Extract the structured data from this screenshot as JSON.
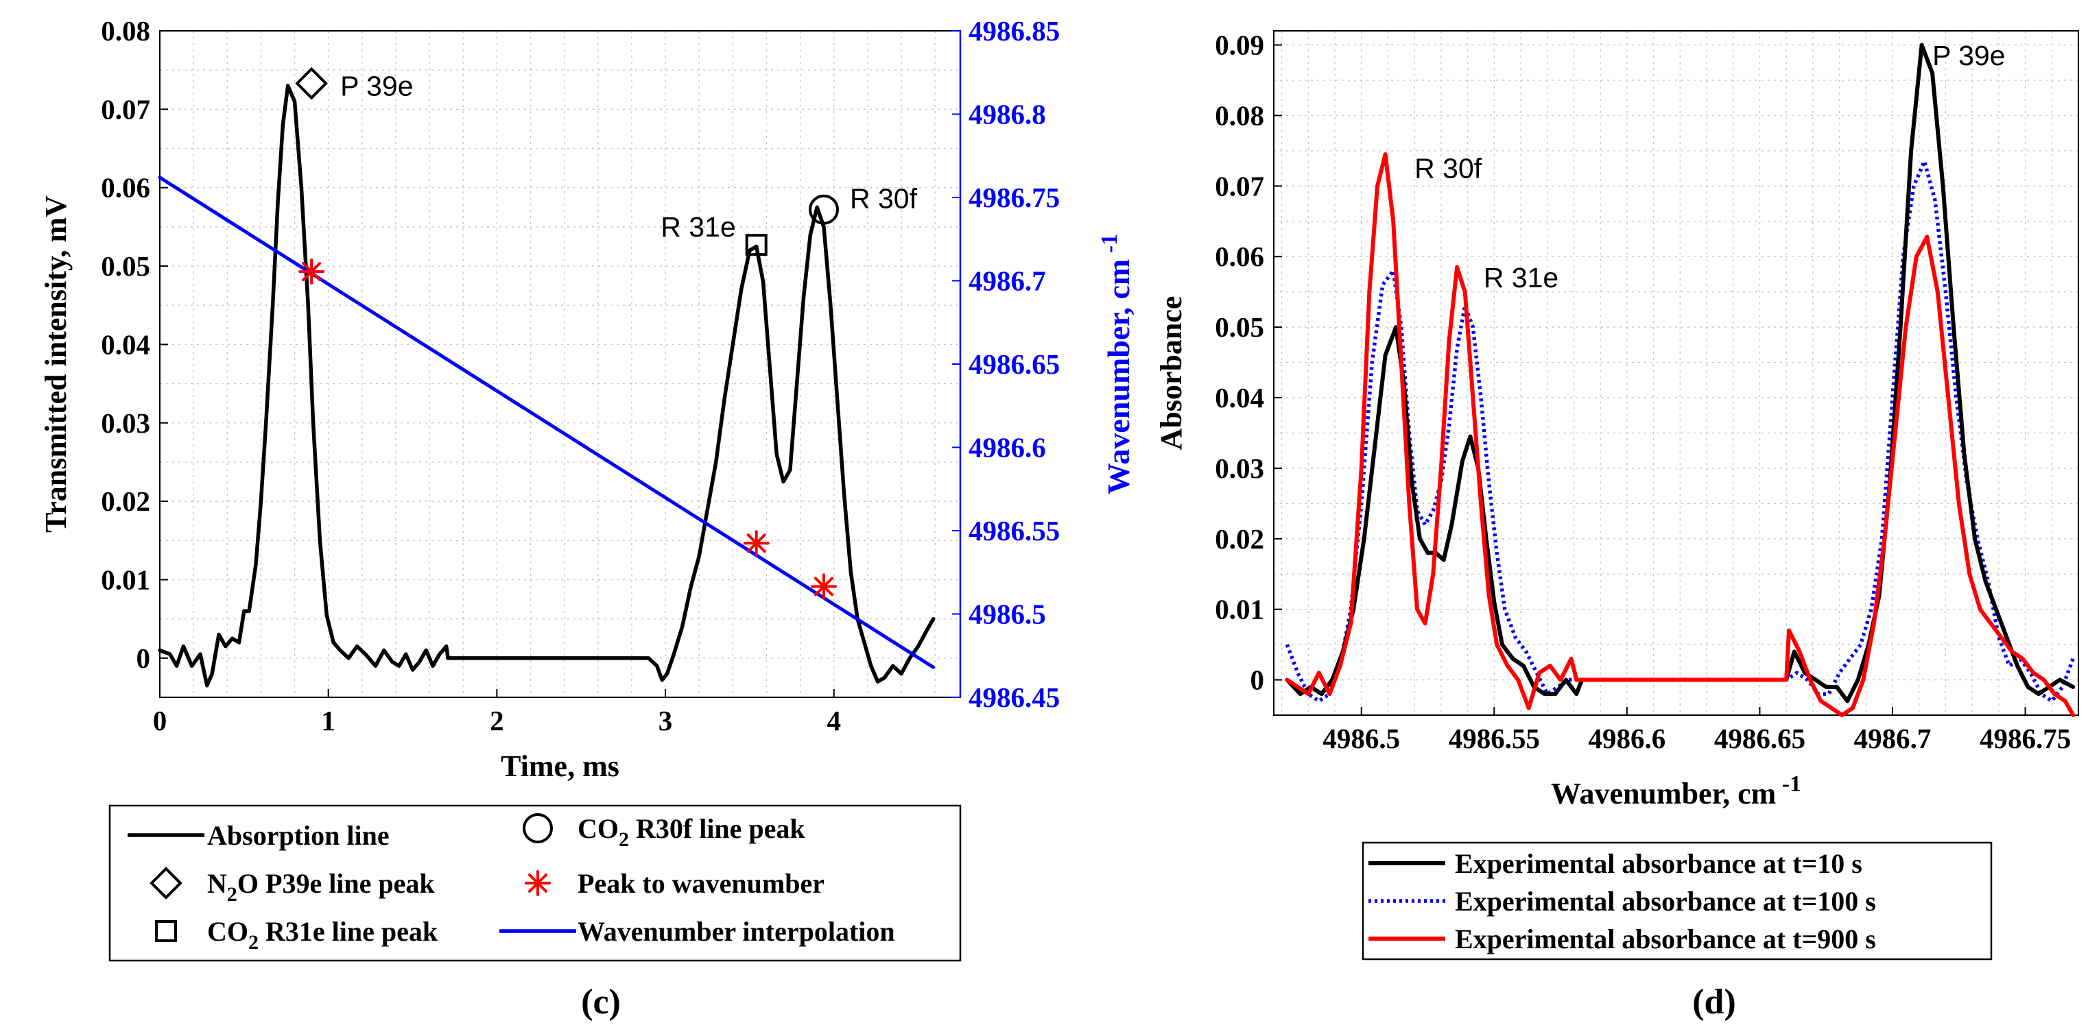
{
  "chart_data": [
    {
      "id": "c",
      "type": "line",
      "panel_label": "(c)",
      "xlabel": "Time, ms",
      "ylabel": "Transmitted intensity, mV",
      "ylabel_right_base": "Wavenumber, cm",
      "ylabel_right_sup": "-1",
      "xlim": [
        0,
        4.75
      ],
      "ylim": [
        -0.005,
        0.08
      ],
      "ylim_right": [
        4986.45,
        4986.85
      ],
      "xticks": [
        0,
        1,
        2,
        3,
        4
      ],
      "xtick_labels": [
        "0",
        "1",
        "2",
        "3",
        "4"
      ],
      "yticks": [
        0,
        0.01,
        0.02,
        0.03,
        0.04,
        0.05,
        0.06,
        0.07,
        0.08
      ],
      "ytick_labels": [
        "0",
        "0.01",
        "0.02",
        "0.03",
        "0.04",
        "0.05",
        "0.06",
        "0.07",
        "0.08"
      ],
      "yticks_right": [
        4986.45,
        4986.5,
        4986.55,
        4986.6,
        4986.65,
        4986.7,
        4986.75,
        4986.8,
        4986.85
      ],
      "ytick_labels_right": [
        "4986.45",
        "4986.5",
        "4986.55",
        "4986.6",
        "4986.65",
        "4986.7",
        "4986.75",
        "4986.8",
        "4986.85"
      ],
      "grid": true,
      "series": [
        {
          "name": "Absorption line",
          "color": "#000000",
          "x": [
            0,
            0.06,
            0.1,
            0.14,
            0.19,
            0.24,
            0.28,
            0.31,
            0.35,
            0.39,
            0.43,
            0.47,
            0.5,
            0.53,
            0.57,
            0.6,
            0.63,
            0.67,
            0.7,
            0.73,
            0.76,
            0.8,
            0.84,
            0.88,
            0.91,
            0.95,
            0.99,
            1.03,
            1.07,
            1.12,
            1.17,
            1.22,
            1.28,
            1.33,
            1.38,
            1.42,
            1.46,
            1.5,
            1.54,
            1.58,
            1.62,
            1.66,
            1.7,
            1.71,
            2.9,
            2.95,
            2.98,
            3.01,
            3.05,
            3.1,
            3.15,
            3.2,
            3.25,
            3.3,
            3.35,
            3.4,
            3.45,
            3.5,
            3.54,
            3.58,
            3.62,
            3.66,
            3.7,
            3.74,
            3.78,
            3.82,
            3.86,
            3.9,
            3.94,
            3.98,
            4.02,
            4.06,
            4.1,
            4.14,
            4.18,
            4.22,
            4.26,
            4.3,
            4.35,
            4.4,
            4.45,
            4.5,
            4.55,
            4.59
          ],
          "values": [
            0.001,
            0.0005,
            -0.001,
            0.0015,
            -0.001,
            0.0005,
            -0.0035,
            -0.002,
            0.003,
            0.0015,
            0.0025,
            0.002,
            0.006,
            0.006,
            0.012,
            0.02,
            0.03,
            0.045,
            0.058,
            0.068,
            0.073,
            0.071,
            0.06,
            0.045,
            0.03,
            0.015,
            0.0055,
            0.002,
            0.001,
            0.0,
            0.0015,
            0.0005,
            -0.001,
            0.001,
            -0.0005,
            -0.001,
            0.0005,
            -0.0015,
            -0.0005,
            0.001,
            -0.001,
            0.0005,
            0.0015,
            0.0,
            0.0,
            -0.001,
            -0.0028,
            -0.002,
            0.0005,
            0.004,
            0.009,
            0.013,
            0.019,
            0.025,
            0.033,
            0.04,
            0.047,
            0.052,
            0.0525,
            0.048,
            0.037,
            0.026,
            0.0225,
            0.024,
            0.035,
            0.046,
            0.054,
            0.0575,
            0.055,
            0.045,
            0.033,
            0.021,
            0.011,
            0.005,
            0.002,
            -0.001,
            -0.003,
            -0.0025,
            -0.001,
            -0.002,
            0.0,
            0.0015,
            0.0035,
            0.005
          ]
        },
        {
          "name": "Wavenumber interpolation",
          "color": "#0000ff",
          "axis": "right",
          "x": [
            0,
            4.59
          ],
          "values": [
            4986.762,
            4986.468
          ]
        }
      ],
      "markers": [
        {
          "name": "N2O P39e line peak",
          "shape": "diamond",
          "x": 0.9,
          "y": 0.0733,
          "label": "P 39e"
        },
        {
          "name": "CO2 R31e line peak",
          "shape": "square",
          "x": 3.54,
          "y": 0.0527,
          "label": "R 31e"
        },
        {
          "name": "CO2 R30f line peak",
          "shape": "circle",
          "x": 3.94,
          "y": 0.0572,
          "label": "R 30f"
        }
      ],
      "peak_to_wavenumber": [
        {
          "x": 0.9,
          "y_right": 4986.7055
        },
        {
          "x": 3.54,
          "y_right": 4986.5425
        },
        {
          "x": 3.94,
          "y_right": 4986.5165
        }
      ],
      "legend": {
        "placement": "below",
        "col1": [
          {
            "label": "Absorption line",
            "symbol": "line",
            "color": "#000000"
          },
          {
            "label_pre": "N",
            "label_sub": "2",
            "label_post": "O P39e line peak",
            "symbol": "diamond",
            "color": "#000000"
          },
          {
            "label_pre": "CO",
            "label_sub": "2",
            "label_post": " R31e line peak",
            "symbol": "square",
            "color": "#000000"
          }
        ],
        "col2": [
          {
            "label_pre": "CO",
            "label_sub": "2",
            "label_post": " R30f line peak",
            "symbol": "circle",
            "color": "#000000"
          },
          {
            "label": "Peak to wavenumber",
            "symbol": "asterisk",
            "color": "#ff0000"
          },
          {
            "label": "Wavenumber interpolation",
            "symbol": "line",
            "color": "#0000ff"
          }
        ]
      }
    },
    {
      "id": "d",
      "type": "line",
      "panel_label": "(d)",
      "xlabel_base": "Wavenumber, cm",
      "xlabel_sup": "-1",
      "ylabel": "Absorbance",
      "xlim": [
        4986.467,
        4986.77
      ],
      "ylim": [
        -0.005,
        0.092
      ],
      "xticks": [
        4986.5,
        4986.55,
        4986.6,
        4986.65,
        4986.7,
        4986.75
      ],
      "xtick_labels": [
        "4986.5",
        "4986.55",
        "4986.6",
        "4986.65",
        "4986.7",
        "4986.75"
      ],
      "yticks": [
        0,
        0.01,
        0.02,
        0.03,
        0.04,
        0.05,
        0.06,
        0.07,
        0.08,
        0.09
      ],
      "ytick_labels": [
        "0",
        "0.01",
        "0.02",
        "0.03",
        "0.04",
        "0.05",
        "0.06",
        "0.07",
        "0.08",
        "0.09"
      ],
      "grid": true,
      "series": [
        {
          "name": "Experimental absorbance at t=10 s",
          "color": "#000000",
          "dash": "solid",
          "x": [
            4986.472,
            4986.477,
            4986.481,
            4986.485,
            4986.489,
            4986.493,
            4986.497,
            4986.501,
            4986.505,
            4986.509,
            4986.513,
            4986.516,
            4986.519,
            4986.522,
            4986.525,
            4986.528,
            4986.531,
            4986.534,
            4986.538,
            4986.541,
            4986.544,
            4986.547,
            4986.55,
            4986.553,
            4986.557,
            4986.561,
            4986.565,
            4986.569,
            4986.573,
            4986.577,
            4986.581,
            4986.583,
            4986.66,
            4986.663,
            4986.667,
            4986.671,
            4986.675,
            4986.679,
            4986.683,
            4986.687,
            4986.691,
            4986.695,
            4986.699,
            4986.703,
            4986.707,
            4986.711,
            4986.715,
            4986.719,
            4986.723,
            4986.727,
            4986.731,
            4986.735,
            4986.739,
            4986.743,
            4986.747,
            4986.751,
            4986.755,
            4986.759,
            4986.763,
            4986.768
          ],
          "values": [
            0.0,
            -0.002,
            -0.001,
            -0.002,
            0.0,
            0.004,
            0.01,
            0.02,
            0.033,
            0.046,
            0.05,
            0.042,
            0.028,
            0.02,
            0.018,
            0.018,
            0.017,
            0.022,
            0.031,
            0.0345,
            0.03,
            0.02,
            0.011,
            0.005,
            0.003,
            0.002,
            -0.001,
            -0.002,
            -0.002,
            0.0,
            -0.002,
            0.0,
            0.0,
            0.004,
            0.001,
            0.0,
            -0.001,
            -0.001,
            -0.003,
            0.0,
            0.005,
            0.012,
            0.028,
            0.05,
            0.075,
            0.09,
            0.086,
            0.07,
            0.05,
            0.032,
            0.02,
            0.014,
            0.01,
            0.006,
            0.002,
            -0.001,
            -0.002,
            -0.001,
            0.0,
            -0.001
          ]
        },
        {
          "name": "Experimental absorbance at t=100 s",
          "color": "#0000ff",
          "dash": "dotted",
          "x": [
            4986.472,
            4986.476,
            4986.48,
            4986.484,
            4986.488,
            4986.492,
            4986.496,
            4986.5,
            4986.504,
            4986.508,
            4986.512,
            4986.515,
            4986.518,
            4986.521,
            4986.524,
            4986.527,
            4986.53,
            4986.533,
            4986.536,
            4986.539,
            4986.542,
            4986.545,
            4986.548,
            4986.551,
            4986.554,
            4986.558,
            4986.562,
            4986.566,
            4986.57,
            4986.574,
            4986.578,
            4986.583,
            4986.66,
            4986.664,
            4986.668,
            4986.672,
            4986.676,
            4986.68,
            4986.684,
            4986.688,
            4986.692,
            4986.696,
            4986.7,
            4986.704,
            4986.708,
            4986.712,
            4986.716,
            4986.72,
            4986.724,
            4986.728,
            4986.732,
            4986.736,
            4986.74,
            4986.744,
            4986.748,
            4986.752,
            4986.756,
            4986.76,
            4986.764,
            4986.768
          ],
          "values": [
            0.005,
            0.001,
            -0.002,
            -0.003,
            -0.002,
            0.002,
            0.01,
            0.025,
            0.045,
            0.056,
            0.058,
            0.05,
            0.035,
            0.024,
            0.022,
            0.024,
            0.028,
            0.036,
            0.047,
            0.053,
            0.05,
            0.04,
            0.028,
            0.018,
            0.01,
            0.006,
            0.004,
            0.001,
            -0.002,
            -0.001,
            0.0,
            0.0,
            0.0,
            0.001,
            0.0,
            -0.002,
            -0.002,
            0.001,
            0.003,
            0.005,
            0.01,
            0.02,
            0.04,
            0.06,
            0.07,
            0.0735,
            0.068,
            0.055,
            0.04,
            0.028,
            0.02,
            0.014,
            0.006,
            0.002,
            0.003,
            0.001,
            -0.002,
            -0.003,
            -0.001,
            0.003
          ]
        },
        {
          "name": "Experimental absorbance at t=900 s",
          "color": "#ff0000",
          "dash": "solid",
          "x": [
            4986.472,
            4986.476,
            4986.48,
            4986.484,
            4986.488,
            4986.492,
            4986.496,
            4986.5,
            4986.503,
            4986.506,
            4986.509,
            4986.512,
            4986.515,
            4986.518,
            4986.521,
            4986.524,
            4986.527,
            4986.53,
            4986.533,
            4986.536,
            4986.539,
            4986.542,
            4986.545,
            4986.548,
            4986.551,
            4986.555,
            4986.559,
            4986.563,
            4986.567,
            4986.571,
            4986.575,
            4986.579,
            4986.581,
            4986.583,
            4986.66,
            4986.661,
            4986.665,
            4986.669,
            4986.673,
            4986.677,
            4986.681,
            4986.685,
            4986.689,
            4986.693,
            4986.697,
            4986.701,
            4986.705,
            4986.709,
            4986.713,
            4986.717,
            4986.721,
            4986.725,
            4986.729,
            4986.733,
            4986.737,
            4986.741,
            4986.745,
            4986.749,
            4986.753,
            4986.757,
            4986.761,
            4986.765,
            4986.768
          ],
          "values": [
            0.0,
            -0.001,
            -0.002,
            0.001,
            -0.002,
            0.002,
            0.008,
            0.03,
            0.055,
            0.07,
            0.0745,
            0.065,
            0.045,
            0.025,
            0.01,
            0.008,
            0.015,
            0.03,
            0.048,
            0.0585,
            0.055,
            0.04,
            0.025,
            0.012,
            0.005,
            0.002,
            0.0,
            -0.004,
            0.001,
            0.002,
            0.0,
            0.003,
            0.0,
            0.0,
            0.0,
            0.007,
            0.004,
            0.0,
            -0.003,
            -0.004,
            -0.005,
            -0.004,
            0.0,
            0.008,
            0.02,
            0.035,
            0.05,
            0.06,
            0.0628,
            0.055,
            0.04,
            0.025,
            0.015,
            0.01,
            0.008,
            0.006,
            0.004,
            0.003,
            0.001,
            0.0,
            -0.002,
            -0.003,
            -0.005
          ]
        }
      ],
      "annotations": [
        {
          "text": "R 30f",
          "x": 4986.52,
          "y": 0.0725
        },
        {
          "text": "R 31e",
          "x": 4986.546,
          "y": 0.057
        },
        {
          "text": "P 39e",
          "x": 4986.715,
          "y": 0.0885
        }
      ],
      "legend": {
        "placement": "below",
        "entries": [
          {
            "label": "Experimental absorbance at t=10 s",
            "color": "#000000",
            "dash": "solid"
          },
          {
            "label": "Experimental absorbance at t=100 s",
            "color": "#0000ff",
            "dash": "dotted"
          },
          {
            "label": "Experimental absorbance at t=900 s",
            "color": "#ff0000",
            "dash": "solid"
          }
        ]
      }
    }
  ]
}
